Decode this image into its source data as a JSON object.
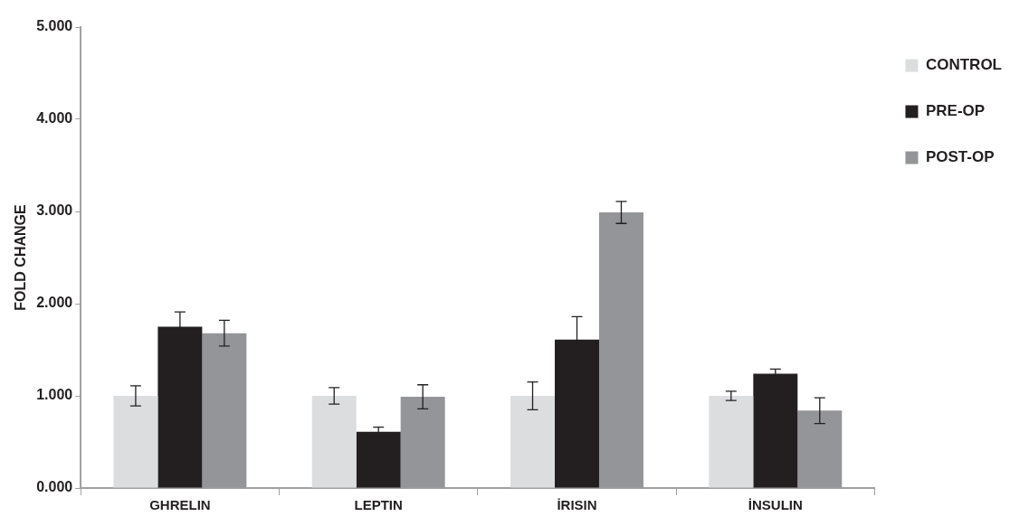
{
  "chart_data": {
    "type": "bar",
    "ylabel": "FOLD CHANGE",
    "categories": [
      "GHRELIN",
      "LEPTIN",
      "İRISIN",
      "İNSULIN"
    ],
    "series": [
      {
        "name": "CONTROL",
        "color": "#dcdddf",
        "values": [
          1.0,
          1.0,
          1.0,
          1.0
        ],
        "errors": [
          0.11,
          0.09,
          0.15,
          0.05
        ]
      },
      {
        "name": "PRE-OP",
        "color": "#231f20",
        "values": [
          1.75,
          0.61,
          1.61,
          1.24
        ],
        "errors": [
          0.16,
          0.05,
          0.25,
          0.05
        ]
      },
      {
        "name": "POST-OP",
        "color": "#939598",
        "values": [
          1.68,
          0.99,
          2.99,
          0.84
        ],
        "errors": [
          0.14,
          0.13,
          0.12,
          0.14
        ]
      }
    ],
    "ylim": [
      0,
      5
    ],
    "yticks": [
      {
        "value": 0,
        "label": "0.000"
      },
      {
        "value": 1,
        "label": "1.000"
      },
      {
        "value": 2,
        "label": "2.000"
      },
      {
        "value": 3,
        "label": "3.000"
      },
      {
        "value": 4,
        "label": "4.000"
      },
      {
        "value": 5,
        "label": "5.000"
      }
    ],
    "grid": false,
    "legend": "right"
  }
}
